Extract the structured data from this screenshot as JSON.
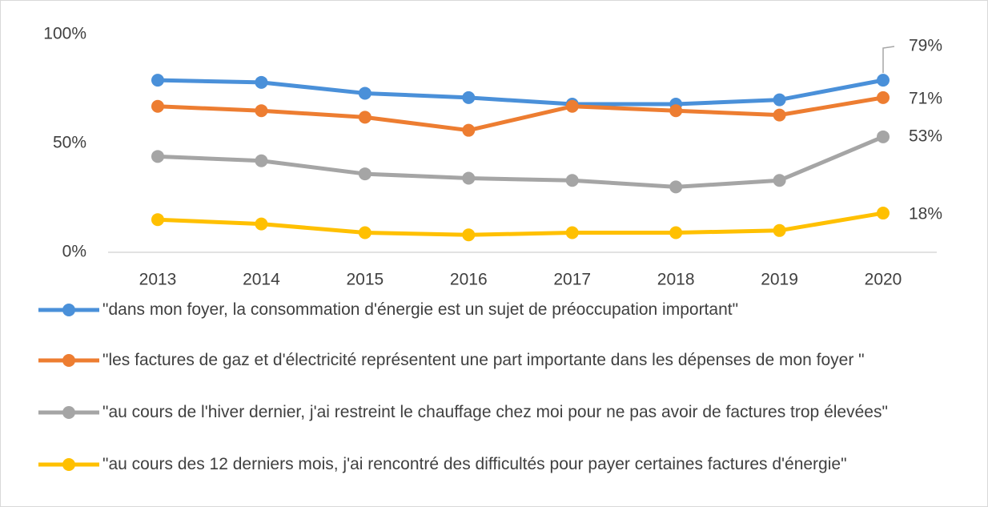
{
  "chart_data": {
    "type": "line",
    "categories": [
      "2013",
      "2014",
      "2015",
      "2016",
      "2017",
      "2018",
      "2019",
      "2020"
    ],
    "series": [
      {
        "name": "\"dans mon foyer, la consommation d'énergie est un sujet de préoccupation important\"",
        "color": "#4a90d9",
        "values": [
          79,
          78,
          73,
          71,
          68,
          68,
          70,
          79
        ],
        "value_labels": [
          null,
          null,
          null,
          null,
          null,
          null,
          null,
          "79%"
        ]
      },
      {
        "name": "\"les factures de gaz et d'électricité représentent une part importante dans les dépenses de mon foyer \"",
        "color": "#ed7d31",
        "values": [
          67,
          65,
          62,
          56,
          67,
          65,
          63,
          71
        ],
        "value_labels": [
          null,
          null,
          null,
          null,
          null,
          null,
          null,
          "71%"
        ]
      },
      {
        "name": "\"au cours de l'hiver dernier, j'ai restreint le chauffage chez moi pour ne pas avoir de factures trop élevées\"",
        "color": "#a5a5a5",
        "values": [
          44,
          42,
          36,
          34,
          33,
          30,
          33,
          53
        ],
        "value_labels": [
          null,
          null,
          null,
          null,
          null,
          null,
          null,
          "53%"
        ]
      },
      {
        "name": "\"au cours des 12 derniers mois, j'ai rencontré des difficultés pour payer certaines factures d'énergie\"",
        "color": "#ffc000",
        "values": [
          15,
          13,
          9,
          8,
          9,
          9,
          10,
          18
        ],
        "value_labels": [
          null,
          null,
          null,
          null,
          null,
          null,
          null,
          "18%"
        ]
      }
    ],
    "ylim": [
      0,
      100
    ],
    "yticks": [
      {
        "value": 0,
        "label": "0%"
      },
      {
        "value": 50,
        "label": "50%"
      },
      {
        "value": 100,
        "label": "100%"
      }
    ],
    "grid": false
  }
}
